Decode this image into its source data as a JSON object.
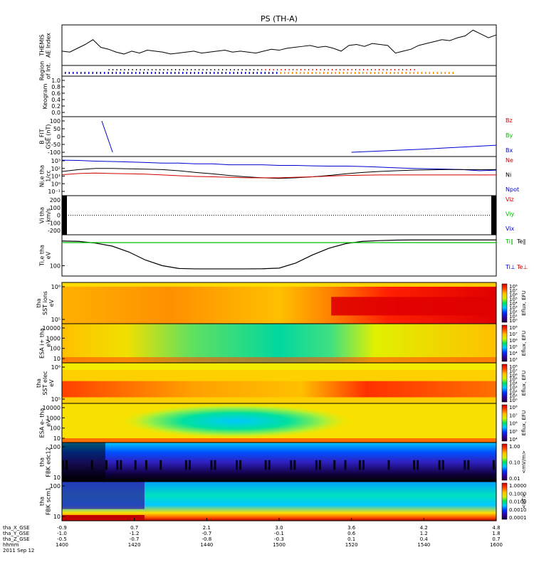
{
  "title": "PS (TH-A)",
  "colors": {
    "red": "#d00000",
    "green": "#00c000",
    "blue": "#0000d0",
    "black": "#000000",
    "orange": "#ff8c00"
  },
  "panels": [
    {
      "id": "ae",
      "ylabel": [
        "THEMIS",
        "AE Index"
      ],
      "ticks": [],
      "right_labels": []
    },
    {
      "id": "roi",
      "ylabel": [
        "Region",
        "of Int."
      ],
      "ticks": [],
      "right_labels": []
    },
    {
      "id": "keogram",
      "ylabel": [
        "Keogram"
      ],
      "ticks": [
        "1.0",
        "0.8",
        "0.6",
        "0.4",
        "0.2",
        "0.0"
      ],
      "right_labels": []
    },
    {
      "id": "bfield",
      "ylabel": [
        "B_FIT",
        "GSE (nT)"
      ],
      "ticks": [
        "100",
        "50",
        "0",
        "-50",
        "-100"
      ],
      "right_labels": [
        {
          "text": "Bz",
          "color": "#d00000"
        },
        {
          "text": "By",
          "color": "#00c000"
        },
        {
          "text": "Bx",
          "color": "#0000d0"
        }
      ]
    },
    {
      "id": "dens",
      "ylabel": [
        "Ni,e tha",
        "1/cc"
      ],
      "ticks": [
        "10³",
        "10²",
        "10¹",
        "10⁰",
        "10⁻¹"
      ],
      "right_labels": [
        {
          "text": "Ne",
          "color": "#d00000"
        },
        {
          "text": "Ni",
          "color": "#000000"
        },
        {
          "text": "Npot",
          "color": "#0000d0"
        }
      ]
    },
    {
      "id": "vel",
      "ylabel": [
        "Vi tha",
        "km/s"
      ],
      "ticks": [
        "200",
        "100",
        "0",
        "-100",
        "-200"
      ],
      "right_labels": [
        {
          "text": "Viz",
          "color": "#d00000"
        },
        {
          "text": "Viy",
          "color": "#00c000"
        },
        {
          "text": "Vix",
          "color": "#0000d0"
        }
      ]
    },
    {
      "id": "temp",
      "ylabel": [
        "Ti,e tha",
        "eV"
      ],
      "ticks": [
        "100"
      ],
      "right_labels": [
        {
          "text": "Ti∥",
          "color": "#00c000"
        },
        {
          "text": "Te∥",
          "color": "#000000"
        },
        {
          "text": "Ti⊥",
          "color": "#0000d0"
        },
        {
          "text": "Te⊥",
          "color": "#d00000"
        }
      ]
    },
    {
      "id": "sst_ions",
      "ylabel": [
        "tha",
        "SST ions",
        "eV"
      ],
      "ticks": [
        "10⁶",
        "10⁵"
      ],
      "cbar_ticks": [
        "10⁸",
        "10⁷",
        "10⁶",
        "10⁵",
        "10⁴",
        "10³",
        "10²",
        "10¹",
        "10⁰"
      ],
      "cbar_label": "Eflux, EFU"
    },
    {
      "id": "esa_ions",
      "ylabel": [
        "ESA i+ tha",
        "eV"
      ],
      "ticks": [
        "10000",
        "1000",
        "100",
        "10"
      ],
      "cbar_ticks": [
        "10⁸",
        "10⁷",
        "10⁶",
        "10⁵",
        "10⁴",
        "10³"
      ],
      "cbar_label": "Eflux, EFU"
    },
    {
      "id": "sst_elec",
      "ylabel": [
        "tha",
        "SST elec",
        "eV"
      ],
      "ticks": [
        "10⁶",
        "10⁵"
      ],
      "cbar_ticks": [
        "10⁸",
        "10⁷",
        "10⁶",
        "10⁵",
        "10⁴",
        "10³",
        "10²",
        "10¹",
        "10⁰"
      ],
      "cbar_label": "Eflux, EFU"
    },
    {
      "id": "esa_elec",
      "ylabel": [
        "ESA e- tha",
        "eV"
      ],
      "ticks": [
        "10000",
        "1000",
        "100",
        "10"
      ],
      "cbar_ticks": [
        "10⁸",
        "10⁷",
        "10⁶",
        "10⁵",
        "10⁴"
      ],
      "cbar_label": "Eflux, EFU"
    },
    {
      "id": "fbk_e",
      "ylabel": [
        "tha",
        "FBK edc12"
      ],
      "ticks": [
        "100",
        "10"
      ],
      "cbar_ticks": [
        "1.00",
        "0.10",
        "0.01"
      ],
      "cbar_label": "<mV/m>"
    },
    {
      "id": "fbk_b",
      "ylabel": [
        "tha",
        "FBK scm1"
      ],
      "ticks": [
        "100",
        "10"
      ],
      "cbar_ticks": [
        "1.0000",
        "0.1000",
        "0.0100",
        "0.0010",
        "0.0001"
      ],
      "cbar_label": "<nT>"
    }
  ],
  "chart_data": {
    "type": "line",
    "title": "PS (TH-A)",
    "x": [
      "1400",
      "1420",
      "1440",
      "1500",
      "1520",
      "1540",
      "1600"
    ],
    "xlabel": "hhmm",
    "date": "2011 Sep 12",
    "ephemeris": [
      {
        "name": "tha_X_GSE",
        "values": [
          "-0.9",
          "0.7",
          "2.1",
          "3.0",
          "3.6",
          "4.2",
          "4.8"
        ]
      },
      {
        "name": "tha_Y_GSE",
        "values": [
          "-1.0",
          "-1.2",
          "-0.7",
          "-0.1",
          "0.6",
          "1.2",
          "1.8"
        ]
      },
      {
        "name": "tha_Z_GSE",
        "values": [
          "-0.5",
          "-0.7",
          "-0.8",
          "-0.3",
          "0.1",
          "0.4",
          "0.7"
        ]
      }
    ],
    "ae_index": [
      60,
      55,
      75,
      95,
      120,
      80,
      70,
      55,
      45,
      60,
      50,
      65,
      60,
      55,
      45,
      50,
      55,
      60,
      50,
      55,
      60,
      65,
      55,
      60,
      55,
      50,
      60,
      70,
      65,
      75,
      80,
      85,
      90,
      80,
      85,
      75,
      60,
      90,
      95,
      85,
      100,
      95,
      90,
      50,
      60,
      70,
      90,
      100,
      110,
      120,
      115,
      130,
      140,
      170,
      150,
      130,
      145
    ],
    "bfield_bx": [
      {
        "t": "1411",
        "v": 100
      },
      {
        "t": "1414",
        "v": -100
      },
      {
        "t": "1520",
        "v": -100
      },
      {
        "t": "1540",
        "v": -80
      },
      {
        "t": "1600",
        "v": -55
      }
    ],
    "density_npot": [
      12,
      11,
      9,
      8,
      7,
      6,
      5,
      5,
      4,
      4,
      3,
      3,
      3,
      2.5,
      2.5,
      2.2,
      2,
      2,
      1.8,
      1.5,
      1.2,
      1,
      0.9,
      0.8,
      0.7,
      0.5,
      0.6
    ],
    "density_ni": [
      0.4,
      0.7,
      1.0,
      1.0,
      0.9,
      0.8,
      0.7,
      0.5,
      0.3,
      0.2,
      0.12,
      0.08,
      0.06,
      0.05,
      0.06,
      0.08,
      0.12,
      0.2,
      0.3,
      0.4,
      0.5,
      0.6,
      0.65,
      0.7,
      0.7,
      0.7,
      0.7
    ],
    "density_ne": [
      0.15,
      0.22,
      0.25,
      0.22,
      0.2,
      0.18,
      0.14,
      0.11,
      0.09,
      0.08,
      0.07,
      0.06,
      0.06,
      0.06,
      0.07,
      0.08,
      0.1,
      0.12,
      0.13,
      0.14,
      0.14,
      0.14,
      0.14,
      0.14,
      0.14,
      0.14,
      0.14
    ],
    "temp_ti": [
      4000,
      3800,
      3000,
      2000,
      900,
      300,
      140,
      95,
      90,
      90,
      90,
      90,
      92,
      100,
      200,
      600,
      1500,
      2800,
      3800,
      4200,
      4500,
      4600,
      4600,
      4600,
      4600,
      4600,
      4600
    ],
    "temp_ti_par": 3200
  }
}
